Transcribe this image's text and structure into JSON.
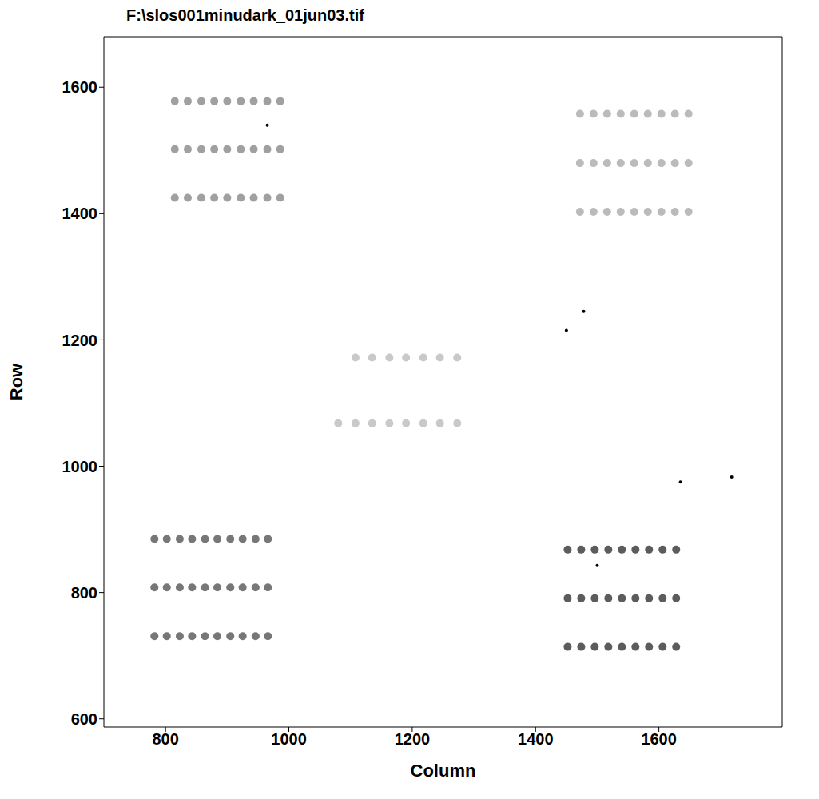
{
  "chart_data": {
    "type": "scatter",
    "title": "F:\\slos001minudark_01jun03.tif",
    "x_label": "Column",
    "y_label": "Row",
    "xlim": [
      700,
      1800
    ],
    "ylim": [
      587,
      1680
    ],
    "xticks": [
      800,
      1000,
      1200,
      1400,
      1600
    ],
    "yticks": [
      600,
      800,
      1000,
      1200,
      1400,
      1600
    ],
    "grid": false,
    "series": [
      {
        "color": "#888888",
        "marker": "circle",
        "x": [
          815,
          836,
          858,
          879,
          900,
          922,
          943,
          965,
          986,
          815,
          836,
          858,
          879,
          900,
          922,
          943,
          965,
          986,
          815,
          836,
          858,
          879,
          900,
          922,
          943,
          965,
          986
        ],
        "y": [
          1578,
          1578,
          1578,
          1578,
          1578,
          1578,
          1578,
          1578,
          1578,
          1502,
          1502,
          1502,
          1502,
          1502,
          1502,
          1502,
          1502,
          1502,
          1425,
          1425,
          1425,
          1425,
          1425,
          1425,
          1425,
          1425,
          1425
        ]
      },
      {
        "color": "#555555",
        "marker": "circle",
        "x": [
          782,
          802,
          823,
          843,
          864,
          884,
          905,
          925,
          946,
          966,
          782,
          802,
          823,
          843,
          864,
          884,
          905,
          925,
          946,
          966,
          782,
          802,
          823,
          843,
          864,
          884,
          905,
          925,
          946,
          966
        ],
        "y": [
          885,
          885,
          885,
          885,
          885,
          885,
          885,
          885,
          885,
          885,
          808,
          808,
          808,
          808,
          808,
          808,
          808,
          808,
          808,
          808,
          731,
          731,
          731,
          731,
          731,
          731,
          731,
          731,
          731,
          731
        ]
      },
      {
        "color": "#bbbbbb",
        "marker": "circle",
        "x": [
          1108,
          1135,
          1163,
          1190,
          1218,
          1245,
          1273,
          1080,
          1108,
          1135,
          1163,
          1190,
          1218,
          1245,
          1273
        ],
        "y": [
          1172,
          1172,
          1172,
          1172,
          1172,
          1172,
          1172,
          1068,
          1068,
          1068,
          1068,
          1068,
          1068,
          1068,
          1068
        ]
      },
      {
        "color": "#aaaaaa",
        "marker": "circle",
        "x": [
          1472,
          1494,
          1516,
          1538,
          1560,
          1582,
          1604,
          1626,
          1648,
          1472,
          1494,
          1516,
          1538,
          1560,
          1582,
          1604,
          1626,
          1648,
          1472,
          1494,
          1516,
          1538,
          1560,
          1582,
          1604,
          1626,
          1648
        ],
        "y": [
          1558,
          1558,
          1558,
          1558,
          1558,
          1558,
          1558,
          1558,
          1558,
          1480,
          1480,
          1480,
          1480,
          1480,
          1480,
          1480,
          1480,
          1480,
          1403,
          1403,
          1403,
          1403,
          1403,
          1403,
          1403,
          1403,
          1403
        ]
      },
      {
        "color": "#333333",
        "marker": "circle",
        "x": [
          1452,
          1474,
          1496,
          1518,
          1540,
          1562,
          1584,
          1606,
          1628,
          1452,
          1474,
          1496,
          1518,
          1540,
          1562,
          1584,
          1606,
          1628,
          1452,
          1474,
          1496,
          1518,
          1540,
          1562,
          1584,
          1606,
          1628
        ],
        "y": [
          868,
          868,
          868,
          868,
          868,
          868,
          868,
          868,
          868,
          791,
          791,
          791,
          791,
          791,
          791,
          791,
          791,
          791,
          714,
          714,
          714,
          714,
          714,
          714,
          714,
          714,
          714
        ]
      },
      {
        "color": "#000000",
        "marker": "dot",
        "x": [
          965,
          1450,
          1478,
          1718,
          1500,
          1635
        ],
        "y": [
          1540,
          1215,
          1245,
          983,
          843,
          975
        ]
      }
    ]
  }
}
